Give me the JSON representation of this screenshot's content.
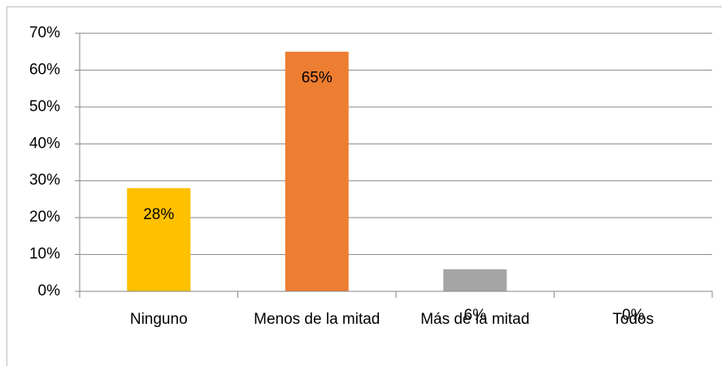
{
  "chart_data": {
    "type": "bar",
    "categories": [
      "Ninguno",
      "Menos de la mitad",
      "Más de la mitad",
      "Todos"
    ],
    "values": [
      28,
      65,
      6,
      0
    ],
    "value_labels": [
      "28%",
      "65%",
      "6%",
      "0%"
    ],
    "colors": [
      "#ffc000",
      "#ed7d31",
      "#a5a5a5",
      "#4472c4"
    ],
    "ylim": [
      0,
      70
    ],
    "yticks": [
      {
        "value": 0,
        "label": "0%"
      },
      {
        "value": 10,
        "label": "10%"
      },
      {
        "value": 20,
        "label": "20%"
      },
      {
        "value": 30,
        "label": "30%"
      },
      {
        "value": 40,
        "label": "40%"
      },
      {
        "value": 50,
        "label": "50%"
      },
      {
        "value": 60,
        "label": "60%"
      },
      {
        "value": 70,
        "label": "70%"
      }
    ],
    "grid": true
  }
}
